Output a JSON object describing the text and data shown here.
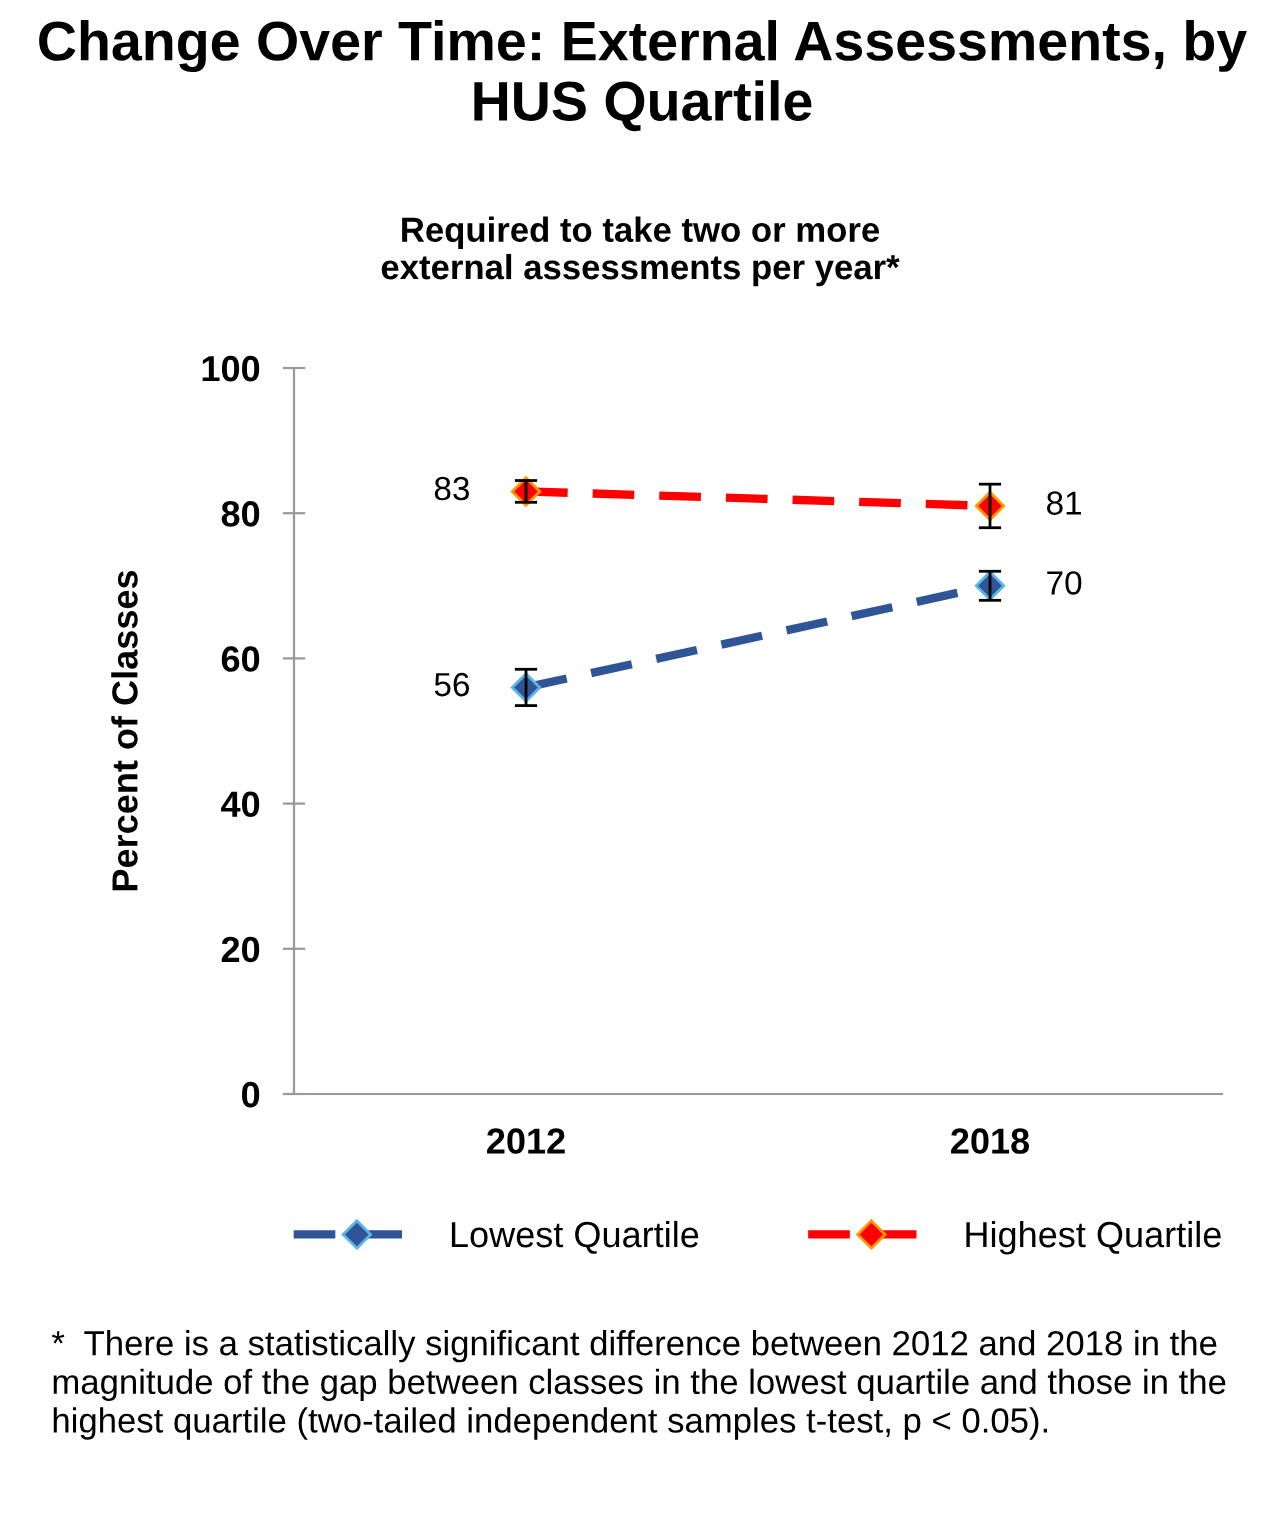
{
  "chart_data": {
    "type": "line",
    "title": "Change Over Time: External Assessments, by HUS Quartile",
    "subtitle": "Required to take two or more\nexternal assessments per year*",
    "ylabel": "Percent of Classes",
    "categories": [
      "2012",
      "2018"
    ],
    "series": [
      {
        "name": "Lowest Quartile",
        "color": "#2f5597",
        "values": [
          56,
          70
        ],
        "errors": [
          2.5,
          2
        ]
      },
      {
        "name": "Highest Quartile",
        "color": "#ff0000",
        "values": [
          83,
          81
        ],
        "errors": [
          1.5,
          3
        ]
      }
    ],
    "ylim": [
      0,
      100
    ],
    "yticks": [
      0,
      20,
      40,
      60,
      80,
      100
    ],
    "grid": false,
    "legend": "bottom",
    "marker": "diamond",
    "line_style": "dashed",
    "data_labels": true,
    "annotations": [
      "*  There is a statistically significant difference between 2012 and 2018 in the magnitude of the gap between classes in the lowest quartile and those in the highest quartile (two-tailed independent samples t-test, p < 0.05)."
    ]
  }
}
